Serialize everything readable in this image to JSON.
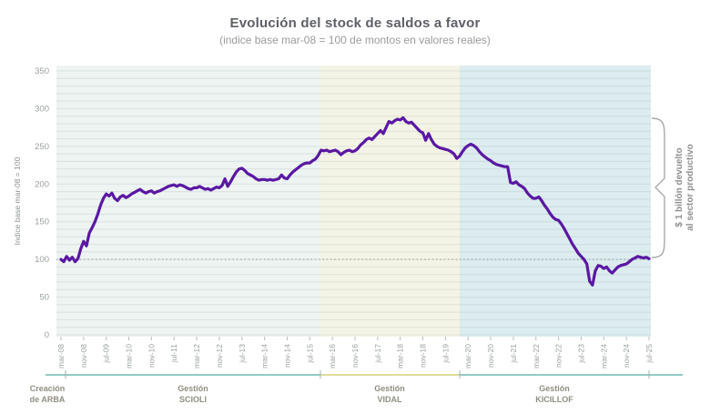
{
  "chart": {
    "title": "Evolución del stock de saldos a favor",
    "subtitle": "(indice base mar-08 = 100 de montos en valores reales)"
  },
  "chart_data": {
    "type": "line",
    "title": "Evolución del stock de saldos a favor",
    "subtitle": "(indice base mar-08 = 100 de montos en valores reales)",
    "ylabel": "Indice base mar-08 = 100",
    "ylim": [
      0,
      350
    ],
    "yticks": [
      0,
      50,
      100,
      150,
      200,
      250,
      300,
      350
    ],
    "grid": "minor horizontal every 10 units",
    "reference_line": {
      "value": 100,
      "style": "dotted"
    },
    "x_unit": "monthly, from mar-08 to jul-25",
    "x_tick_month_step": 8,
    "x_tick_labels": [
      "mar-08",
      "nov-08",
      "jul-09",
      "mar-10",
      "nov-10",
      "jul-11",
      "mar-12",
      "nov-12",
      "jul-13",
      "mar-14",
      "nov-14",
      "jul-15",
      "mar-16",
      "nov-16",
      "jul-17",
      "mar-18",
      "nov-18",
      "jul-19",
      "mar-20",
      "nov-20",
      "jul-21",
      "mar-22",
      "nov-22",
      "jul-23",
      "mar-24",
      "nov-24",
      "jul-25"
    ],
    "line_color": "#5a18a2",
    "series": [
      {
        "name": "Stock de saldos a favor (indice base mar-08 = 100)",
        "monthly_values": [
          100,
          97,
          104,
          99,
          103,
          97,
          101,
          114,
          124,
          118,
          135,
          142,
          150,
          160,
          172,
          181,
          187,
          184,
          188,
          181,
          178,
          183,
          185,
          182,
          184,
          187,
          189,
          191,
          193,
          190,
          188,
          190,
          191,
          188,
          190,
          191,
          193,
          195,
          197,
          198,
          199,
          197,
          199,
          198,
          196,
          194,
          193,
          195,
          195,
          197,
          195,
          193,
          194,
          192,
          194,
          196,
          195,
          198,
          207,
          197,
          203,
          210,
          216,
          220,
          221,
          218,
          214,
          212,
          210,
          207,
          205,
          206,
          206,
          205,
          206,
          205,
          206,
          207,
          212,
          208,
          207,
          212,
          216,
          219,
          222,
          225,
          227,
          228,
          228,
          231,
          233,
          238,
          245,
          244,
          245,
          243,
          244,
          245,
          243,
          239,
          242,
          244,
          245,
          243,
          244,
          247,
          252,
          255,
          259,
          261,
          259,
          263,
          267,
          271,
          267,
          275,
          283,
          281,
          284,
          286,
          285,
          288,
          283,
          281,
          282,
          278,
          274,
          270,
          268,
          258,
          267,
          259,
          253,
          250,
          248,
          247,
          246,
          245,
          243,
          240,
          234,
          237,
          243,
          248,
          251,
          253,
          251,
          248,
          243,
          239,
          236,
          233,
          231,
          228,
          226,
          225,
          224,
          223,
          223,
          202,
          201,
          203,
          199,
          197,
          194,
          188,
          184,
          181,
          181,
          183,
          178,
          172,
          167,
          161,
          156,
          153,
          152,
          147,
          141,
          134,
          127,
          120,
          114,
          108,
          104,
          100,
          94,
          71,
          66,
          85,
          92,
          91,
          88,
          90,
          85,
          82,
          86,
          90,
          92,
          93,
          94,
          97,
          100,
          102,
          104,
          103,
          102,
          103,
          101
        ]
      }
    ],
    "regions": [
      {
        "label_lines": [
          "Creación",
          "de ARBA"
        ],
        "bracket_color": "#52ab9f",
        "band_color": "#edf4f2"
      },
      {
        "label_lines": [
          "Gestión",
          "SCIOLI"
        ],
        "bracket_color": "#52ab9f",
        "band_color": "#edf4f2"
      },
      {
        "label_lines": [
          "Gestión",
          "VIDAL"
        ],
        "bracket_color": "#cdc75f",
        "band_color": "#f4f4e6"
      },
      {
        "label_lines": [
          "Gestión",
          "KICILLOF"
        ],
        "bracket_color": "#52ab9f",
        "band_color": "#dcecef"
      }
    ],
    "annotation": {
      "lines": [
        "$ 1 billón devuelto",
        "al sector productivo"
      ]
    },
    "colors": {
      "title": "#5d6066",
      "subtitle": "#9b9b9b",
      "axis_text": "#9aa0a0",
      "region_label_text": "#908e82",
      "annotation_text": "#8f8f8f",
      "brace": "#9a9a9a",
      "dotted_reference": "#8e9999"
    }
  }
}
